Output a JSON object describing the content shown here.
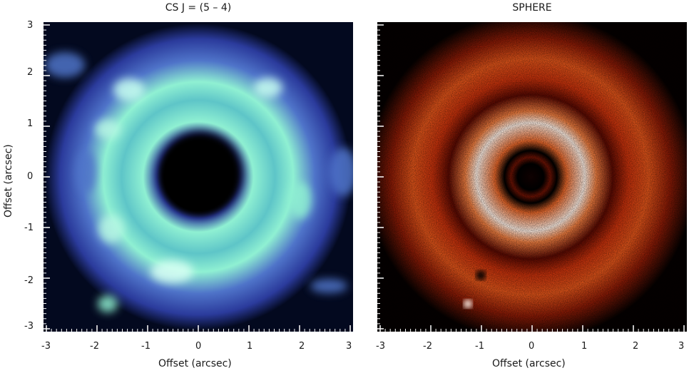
{
  "panels": [
    {
      "title": "CS J = (5 – 4)",
      "xlabel": "Offset (arcsec)",
      "ylabel": "Offset (arcsec)",
      "colormap": "blue-cyan",
      "colors": {
        "background": "#03091f",
        "low": "#2b3b9c",
        "mid": "#4f74c9",
        "high": "#8ff0d2",
        "peak": "#ddfff2"
      }
    },
    {
      "title": "SPHERE",
      "xlabel": "Offset (arcsec)",
      "colormap": "black-red-white",
      "colors": {
        "background": "#050101",
        "low": "#5a0a02",
        "mid": "#c8320c",
        "high": "#f07e40",
        "peak": "#fff3ea"
      }
    }
  ],
  "ticks": [
    "-3",
    "-2",
    "-1",
    "0",
    "1",
    "2",
    "3"
  ],
  "yticks": [
    "3",
    "2",
    "1",
    "0",
    "-1",
    "-2",
    "-3"
  ]
}
